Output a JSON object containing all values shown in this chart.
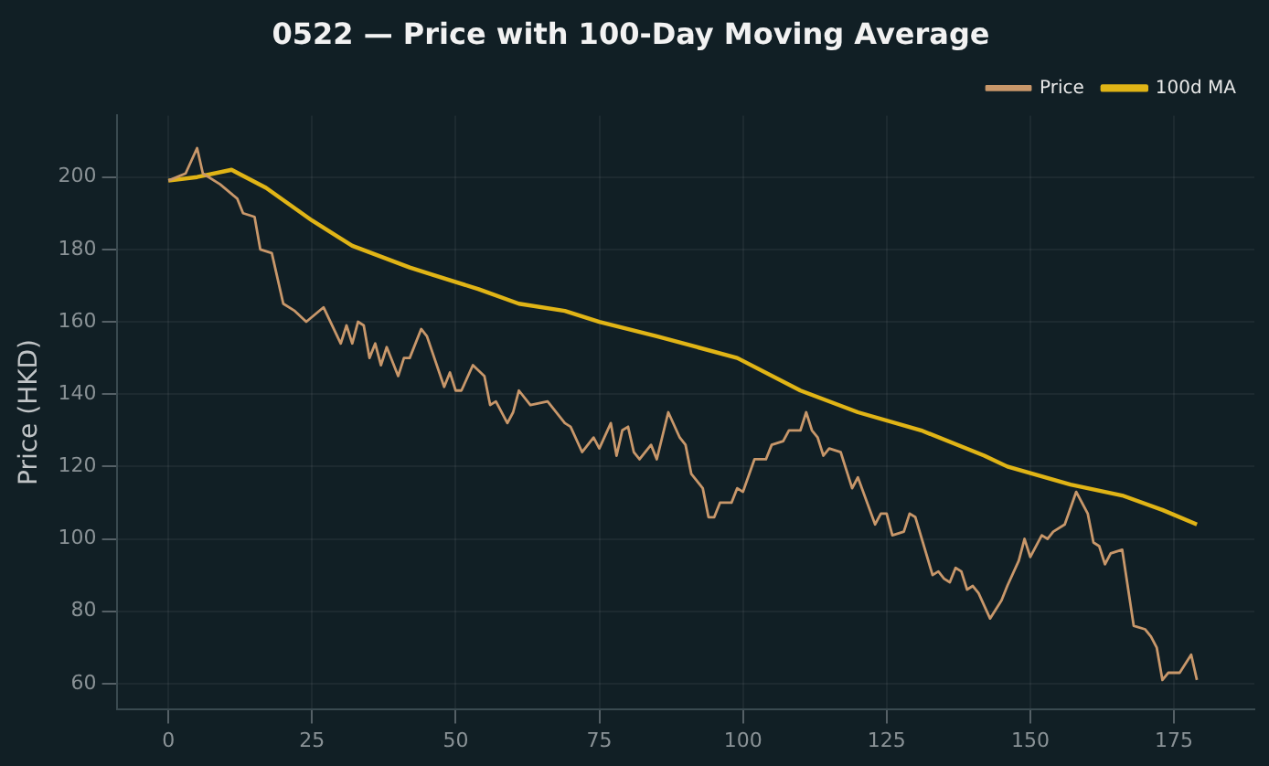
{
  "chart_data": {
    "type": "line",
    "title": "0522 — Price with 100-Day Moving Average",
    "ylabel": "Price (HKD)",
    "xlim": [
      -9,
      189
    ],
    "ylim": [
      53,
      217
    ],
    "xticks": [
      0,
      25,
      50,
      75,
      100,
      125,
      150,
      175
    ],
    "yticks": [
      60,
      80,
      100,
      120,
      140,
      160,
      180,
      200
    ],
    "grid": true,
    "legend": "top right",
    "marker": "none",
    "line_style": "solid",
    "series": [
      {
        "name": "Price",
        "color": "#c8976a",
        "x": [
          0,
          3,
          5,
          6,
          9,
          12,
          13,
          15,
          16,
          18,
          20,
          22,
          24,
          27,
          30,
          31,
          32,
          33,
          34,
          35,
          36,
          37,
          38,
          40,
          41,
          42,
          44,
          45,
          48,
          49,
          50,
          51,
          53,
          55,
          56,
          57,
          59,
          60,
          61,
          63,
          66,
          69,
          70,
          72,
          74,
          75,
          77,
          78,
          79,
          80,
          81,
          82,
          84,
          85,
          87,
          89,
          90,
          91,
          93,
          94,
          95,
          96,
          98,
          99,
          100,
          102,
          104,
          105,
          107,
          108,
          110,
          111,
          112,
          113,
          114,
          115,
          117,
          119,
          120,
          123,
          124,
          125,
          126,
          128,
          129,
          130,
          133,
          134,
          135,
          136,
          137,
          138,
          139,
          140,
          141,
          143,
          145,
          146,
          148,
          149,
          150,
          152,
          153,
          154,
          156,
          158,
          160,
          161,
          162,
          163,
          164,
          166,
          168,
          170,
          171,
          172,
          173,
          174,
          176,
          178,
          179
        ],
        "values": [
          199,
          201,
          208,
          201,
          198,
          194,
          190,
          189,
          180,
          179,
          165,
          163,
          160,
          164,
          154,
          159,
          154,
          160,
          159,
          150,
          154,
          148,
          153,
          145,
          150,
          150,
          158,
          156,
          142,
          146,
          141,
          141,
          148,
          145,
          137,
          138,
          132,
          135,
          141,
          137,
          138,
          132,
          131,
          124,
          128,
          125,
          132,
          123,
          130,
          131,
          124,
          122,
          126,
          122,
          135,
          128,
          126,
          118,
          114,
          106,
          106,
          110,
          110,
          114,
          113,
          122,
          122,
          126,
          127,
          130,
          130,
          135,
          130,
          128,
          123,
          125,
          124,
          114,
          117,
          104,
          107,
          107,
          101,
          102,
          107,
          106,
          90,
          91,
          89,
          88,
          92,
          91,
          86,
          87,
          85,
          78,
          83,
          87,
          94,
          100,
          95,
          101,
          100,
          102,
          104,
          113,
          107,
          99,
          98,
          93,
          96,
          97,
          76,
          75,
          73,
          70,
          61,
          63,
          63,
          68,
          61
        ]
      },
      {
        "name": "100d MA",
        "color": "#e0b416",
        "x": [
          0,
          5,
          11,
          17,
          25,
          32,
          42,
          46,
          54,
          61,
          69,
          75,
          85,
          92,
          99,
          110,
          120,
          131,
          142,
          146,
          157,
          166,
          173,
          179
        ],
        "values": [
          199,
          200,
          202,
          197,
          188,
          181,
          175,
          173,
          169,
          165,
          163,
          160,
          156,
          153,
          150,
          141,
          135,
          130,
          123,
          120,
          115,
          112,
          108,
          104
        ]
      }
    ]
  }
}
